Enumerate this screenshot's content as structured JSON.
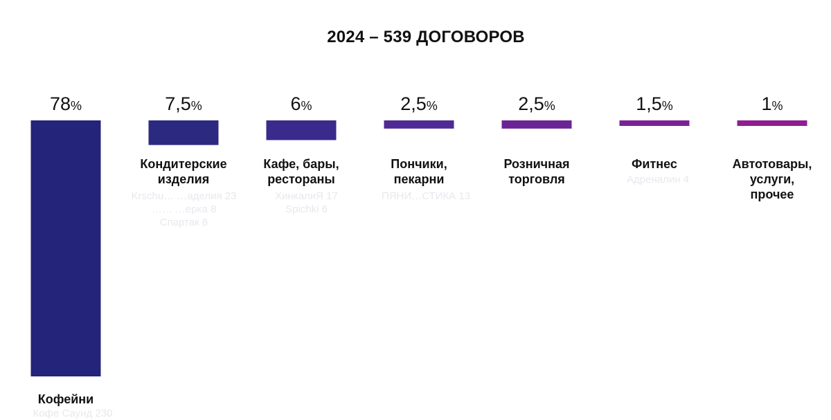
{
  "chart_data": {
    "type": "bar",
    "title": "2024 – 539 ДОГОВОРОВ",
    "categories": [
      "Кофейни",
      "Кондитерские изделия",
      "Кафе, бары, рестораны",
      "Пончики, пекарни",
      "Розничная торговля",
      "Фитнес",
      "Автотовары, услуги, прочее"
    ],
    "category_lines": [
      [
        "Кофейни"
      ],
      [
        "Кондитерские",
        "изделия"
      ],
      [
        "Кафе, бары,",
        "рестораны"
      ],
      [
        "Пончики,",
        "пекарни"
      ],
      [
        "Розничная",
        "торговля"
      ],
      [
        "Фитнес"
      ],
      [
        "Автотовары,",
        "услуги,",
        "прочее"
      ]
    ],
    "values": [
      78,
      7.5,
      6,
      2.5,
      2.5,
      1.5,
      1
    ],
    "value_labels": [
      "78",
      "7,5",
      "6",
      "2,5",
      "2,5",
      "1,5",
      "1"
    ],
    "unit": "%",
    "ylim": [
      0,
      78
    ],
    "grid": false,
    "legend": "none",
    "colors": [
      "#24247a",
      "#2c2a80",
      "#3a2a8c",
      "#4f2a94",
      "#6a2496",
      "#7d2096",
      "#8e1e92"
    ]
  },
  "faint_labels": [
    "Кофе Саунд 230",
    "Krschu… …аделия 23\n…… …ерка 8\nСпартак 8",
    "ХинкалиЯ 17\nSpichki 6",
    "ПЯНИ…СТИКА 13",
    "Адреналин 4"
  ]
}
